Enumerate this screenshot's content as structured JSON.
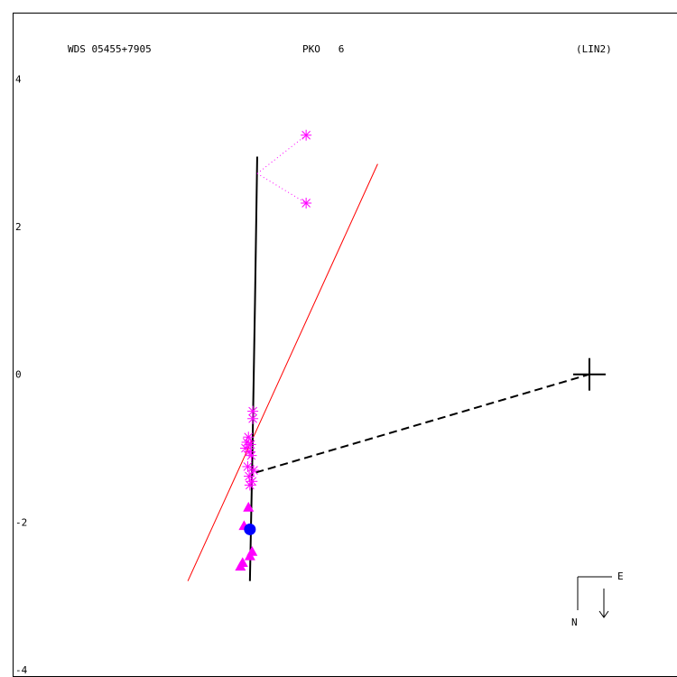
{
  "header": {
    "left": "WDS 05455+7905",
    "center": "PKO   6",
    "right": "(LIN2)"
  },
  "orientation": {
    "east": "E",
    "north": "N"
  },
  "colors": {
    "frame": "#000000",
    "fit_line": "#ff0000",
    "orbit": "#000000",
    "star_markers": "#ff00ff",
    "circle_marker": "#0000ff"
  },
  "chart_data": {
    "type": "scatter",
    "title": "WDS 05455+7905",
    "xlim": [
      -3.2,
      5.9
    ],
    "ylim": [
      -4.1,
      4.9
    ],
    "y_ticks": [
      4,
      2,
      0,
      -2,
      -4
    ],
    "y_tick_labels": [
      "4",
      "2",
      "0",
      "-2",
      "-4"
    ],
    "grid": false,
    "fit_line": [
      [
        -0.8,
        -2.8
      ],
      [
        1.8,
        2.85
      ]
    ],
    "orbit_line": [
      [
        0.05,
        -2.8
      ],
      [
        0.08,
        -1.3
      ],
      [
        0.12,
        1.0
      ],
      [
        0.15,
        2.95
      ]
    ],
    "dashed_line": [
      [
        0.13,
        -1.33
      ],
      [
        4.7,
        0.0
      ]
    ],
    "primary_position": [
      4.7,
      0.0
    ],
    "dotted_lines": [
      [
        [
          0.15,
          2.72
        ],
        [
          0.82,
          3.24
        ]
      ],
      [
        [
          0.15,
          2.72
        ],
        [
          0.82,
          2.32
        ]
      ]
    ],
    "asterisk_points": [
      [
        0.82,
        3.24
      ],
      [
        0.82,
        2.32
      ],
      [
        0.09,
        -0.5
      ],
      [
        0.09,
        -0.6
      ],
      [
        0.03,
        -0.85
      ],
      [
        0.01,
        -0.92
      ],
      [
        0.06,
        -0.95
      ],
      [
        -0.01,
        -1.0
      ],
      [
        0.04,
        -1.05
      ],
      [
        0.07,
        -1.1
      ],
      [
        0.02,
        -1.25
      ],
      [
        0.1,
        -1.3
      ],
      [
        0.04,
        -1.38
      ],
      [
        0.08,
        -1.45
      ],
      [
        0.05,
        -1.5
      ]
    ],
    "triangle_points": [
      [
        0.03,
        -1.8
      ],
      [
        -0.03,
        -2.05
      ],
      [
        0.08,
        -2.4
      ],
      [
        0.05,
        -2.46
      ],
      [
        -0.05,
        -2.55
      ],
      [
        -0.08,
        -2.6
      ]
    ],
    "circle_points": [
      [
        0.05,
        -2.1
      ]
    ]
  }
}
